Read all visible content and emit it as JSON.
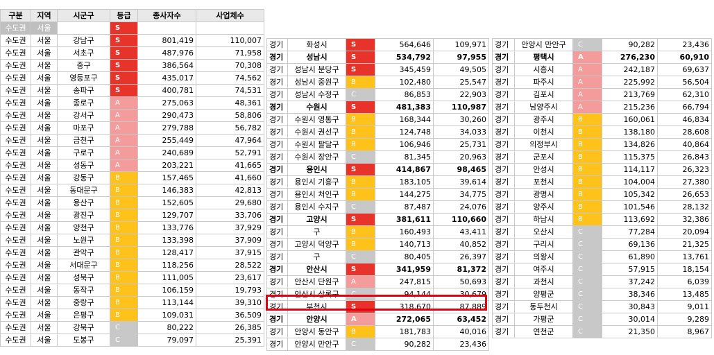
{
  "top_partial_text": "",
  "table1": {
    "headers": [
      "구분",
      "지역",
      "시군구",
      "등급",
      "종사자수",
      "사업체수"
    ],
    "rows": [
      [
        "수도권",
        "서울",
        "",
        "S",
        "",
        ""
      ],
      [
        "수도권",
        "서울",
        "강남구",
        "S",
        "801,419",
        "110,007"
      ],
      [
        "수도권",
        "서울",
        "서초구",
        "S",
        "487,976",
        "71,958"
      ],
      [
        "수도권",
        "서울",
        "중구",
        "S",
        "386,564",
        "70,308"
      ],
      [
        "수도권",
        "서울",
        "영등포구",
        "S",
        "435,017",
        "74,562"
      ],
      [
        "수도권",
        "서울",
        "송파구",
        "S",
        "400,781",
        "74,531"
      ],
      [
        "수도권",
        "서울",
        "종로구",
        "A",
        "275,063",
        "48,361"
      ],
      [
        "수도권",
        "서울",
        "강서구",
        "A",
        "290,473",
        "58,806"
      ],
      [
        "수도권",
        "서울",
        "마포구",
        "A",
        "279,788",
        "56,782"
      ],
      [
        "수도권",
        "서울",
        "금천구",
        "A",
        "255,449",
        "47,964"
      ],
      [
        "수도권",
        "서울",
        "구로구",
        "A",
        "240,689",
        "52,791"
      ],
      [
        "수도권",
        "서울",
        "성동구",
        "A",
        "203,221",
        "41,665"
      ],
      [
        "수도권",
        "서울",
        "강동구",
        "B",
        "157,465",
        "41,660"
      ],
      [
        "수도권",
        "서울",
        "동대문구",
        "B",
        "146,383",
        "42,813"
      ],
      [
        "수도권",
        "서울",
        "용산구",
        "B",
        "152,605",
        "29,680"
      ],
      [
        "수도권",
        "서울",
        "광진구",
        "B",
        "129,707",
        "33,706"
      ],
      [
        "수도권",
        "서울",
        "양천구",
        "B",
        "133,776",
        "37,929"
      ],
      [
        "수도권",
        "서울",
        "노원구",
        "B",
        "133,398",
        "37,909"
      ],
      [
        "수도권",
        "서울",
        "관악구",
        "B",
        "128,417",
        "37,915"
      ],
      [
        "수도권",
        "서울",
        "서대문구",
        "B",
        "118,256",
        "28,522"
      ],
      [
        "수도권",
        "서울",
        "성북구",
        "B",
        "111,005",
        "23,617"
      ],
      [
        "수도권",
        "서울",
        "동작구",
        "B",
        "106,159",
        "19,793"
      ],
      [
        "수도권",
        "서울",
        "중랑구",
        "B",
        "113,144",
        "39,310"
      ],
      [
        "수도권",
        "서울",
        "은평구",
        "B",
        "109,031",
        "36,509"
      ],
      [
        "수도권",
        "서울",
        "강북구",
        "C",
        "80,222",
        "26,385"
      ],
      [
        "수도권",
        "서울",
        "도봉구",
        "C",
        "79,097",
        "25,391"
      ]
    ]
  },
  "table2": {
    "rows": [
      {
        "cells": [
          "경기",
          "화성시",
          "S",
          "564,646",
          "109,971"
        ],
        "bold": false
      },
      {
        "cells": [
          "경기",
          "성남시",
          "S",
          "534,792",
          "97,955"
        ],
        "bold": true
      },
      {
        "cells": [
          "경기",
          "성남시 분당구",
          "S",
          "345,459",
          "49,505"
        ],
        "bold": false
      },
      {
        "cells": [
          "경기",
          "성남시 중원구",
          "B",
          "102,480",
          "25,547"
        ],
        "bold": false
      },
      {
        "cells": [
          "경기",
          "성남시 수정구",
          "C",
          "86,853",
          "22,903"
        ],
        "bold": false
      },
      {
        "cells": [
          "경기",
          "수원시",
          "S",
          "481,383",
          "110,987"
        ],
        "bold": true
      },
      {
        "cells": [
          "경기",
          "수원시 영통구",
          "B",
          "168,344",
          "30,260"
        ],
        "bold": false
      },
      {
        "cells": [
          "경기",
          "수원시 권선구",
          "B",
          "124,748",
          "34,033"
        ],
        "bold": false
      },
      {
        "cells": [
          "경기",
          "수원시 팔달구",
          "B",
          "106,946",
          "25,731"
        ],
        "bold": false
      },
      {
        "cells": [
          "경기",
          "수원시 장안구",
          "C",
          "81,345",
          "20,963"
        ],
        "bold": false
      },
      {
        "cells": [
          "경기",
          "용인시",
          "S",
          "414,867",
          "98,465"
        ],
        "bold": true
      },
      {
        "cells": [
          "경기",
          "용인시 기흥구",
          "B",
          "183,105",
          "39,614"
        ],
        "bold": false
      },
      {
        "cells": [
          "경기",
          "용인시 처인구",
          "B",
          "144,275",
          "34,775"
        ],
        "bold": false
      },
      {
        "cells": [
          "경기",
          "용인시 수지구",
          "C",
          "87,487",
          "24,076"
        ],
        "bold": false
      },
      {
        "cells": [
          "경기",
          "고양시",
          "S",
          "381,611",
          "110,660"
        ],
        "bold": true
      },
      {
        "cells": [
          "경기",
          "구",
          "B",
          "160,493",
          "43,411"
        ],
        "bold": false
      },
      {
        "cells": [
          "경기",
          "고양시 덕양구",
          "B",
          "140,713",
          "40,852"
        ],
        "bold": false
      },
      {
        "cells": [
          "경기",
          "구",
          "C",
          "80,405",
          "26,397"
        ],
        "bold": false
      },
      {
        "cells": [
          "경기",
          "안산시",
          "S",
          "341,959",
          "81,372"
        ],
        "bold": true
      },
      {
        "cells": [
          "경기",
          "안산시 단원구",
          "A",
          "247,815",
          "50,693"
        ],
        "bold": false
      },
      {
        "cells": [
          "경기",
          "안산시 상록구",
          "C",
          "94,144",
          "30,679"
        ],
        "bold": false
      },
      {
        "cells": [
          "경기",
          "부천시",
          "S",
          "318,670",
          "87,889"
        ],
        "bold": false
      },
      {
        "cells": [
          "경기",
          "안양시",
          "A",
          "272,065",
          "63,452"
        ],
        "bold": true
      },
      {
        "cells": [
          "경기",
          "안양시 동안구",
          "B",
          "181,783",
          "40,016"
        ],
        "bold": false
      },
      {
        "cells": [
          "경기",
          "안양시 만안구",
          "C",
          "90,282",
          "23,436"
        ],
        "bold": false
      }
    ]
  },
  "table3": {
    "rows": [
      {
        "cells": [
          "경기",
          "안양시 만안구",
          "C",
          "90,282",
          "23,436"
        ],
        "bold": false
      },
      {
        "cells": [
          "경기",
          "평택시",
          "A",
          "276,230",
          "60,910"
        ],
        "bold": true
      },
      {
        "cells": [
          "경기",
          "시흥시",
          "A",
          "242,187",
          "69,637"
        ],
        "bold": false
      },
      {
        "cells": [
          "경기",
          "파주시",
          "A",
          "225,992",
          "56,504"
        ],
        "bold": false
      },
      {
        "cells": [
          "경기",
          "김포시",
          "A",
          "213,769",
          "62,310"
        ],
        "bold": false
      },
      {
        "cells": [
          "경기",
          "남양주시",
          "A",
          "215,236",
          "66,794"
        ],
        "bold": false
      },
      {
        "cells": [
          "경기",
          "광주시",
          "B",
          "160,061",
          "46,834"
        ],
        "bold": false
      },
      {
        "cells": [
          "경기",
          "이천시",
          "B",
          "138,180",
          "28,608"
        ],
        "bold": false
      },
      {
        "cells": [
          "경기",
          "의정부시",
          "B",
          "134,826",
          "40,864"
        ],
        "bold": false
      },
      {
        "cells": [
          "경기",
          "군포시",
          "B",
          "115,375",
          "26,843"
        ],
        "bold": false
      },
      {
        "cells": [
          "경기",
          "안성시",
          "B",
          "114,117",
          "26,323"
        ],
        "bold": false
      },
      {
        "cells": [
          "경기",
          "포천시",
          "B",
          "104,004",
          "27,380"
        ],
        "bold": false
      },
      {
        "cells": [
          "경기",
          "광명시",
          "B",
          "105,342",
          "26,653"
        ],
        "bold": false
      },
      {
        "cells": [
          "경기",
          "양주시",
          "B",
          "101,546",
          "28,132"
        ],
        "bold": false
      },
      {
        "cells": [
          "경기",
          "하남시",
          "B",
          "113,692",
          "32,386"
        ],
        "bold": false
      },
      {
        "cells": [
          "경기",
          "오산시",
          "C",
          "77,284",
          "20,094"
        ],
        "bold": false
      },
      {
        "cells": [
          "경기",
          "구리시",
          "C",
          "69,136",
          "21,325"
        ],
        "bold": false
      },
      {
        "cells": [
          "경기",
          "의왕시",
          "C",
          "61,890",
          "13,761"
        ],
        "bold": false
      },
      {
        "cells": [
          "경기",
          "여주시",
          "C",
          "57,915",
          "18,154"
        ],
        "bold": false
      },
      {
        "cells": [
          "경기",
          "과천시",
          "C",
          "37,242",
          "6,039"
        ],
        "bold": false
      },
      {
        "cells": [
          "경기",
          "양평군",
          "C",
          "38,346",
          "13,485"
        ],
        "bold": false
      },
      {
        "cells": [
          "경기",
          "동두천시",
          "C",
          "30,843",
          "9,011"
        ],
        "bold": false
      },
      {
        "cells": [
          "경기",
          "가평군",
          "C",
          "30,014",
          "9,289"
        ],
        "bold": false
      },
      {
        "cells": [
          "경기",
          "연천군",
          "C",
          "21,350",
          "8,967"
        ],
        "bold": false
      }
    ]
  },
  "grade_colors": {
    "S": "#e8332a",
    "A": "#f49b9b",
    "B": "#ffc21a",
    "C": "#c8c8c8"
  },
  "highlight_row": {
    "table": "table2",
    "index": 21
  }
}
